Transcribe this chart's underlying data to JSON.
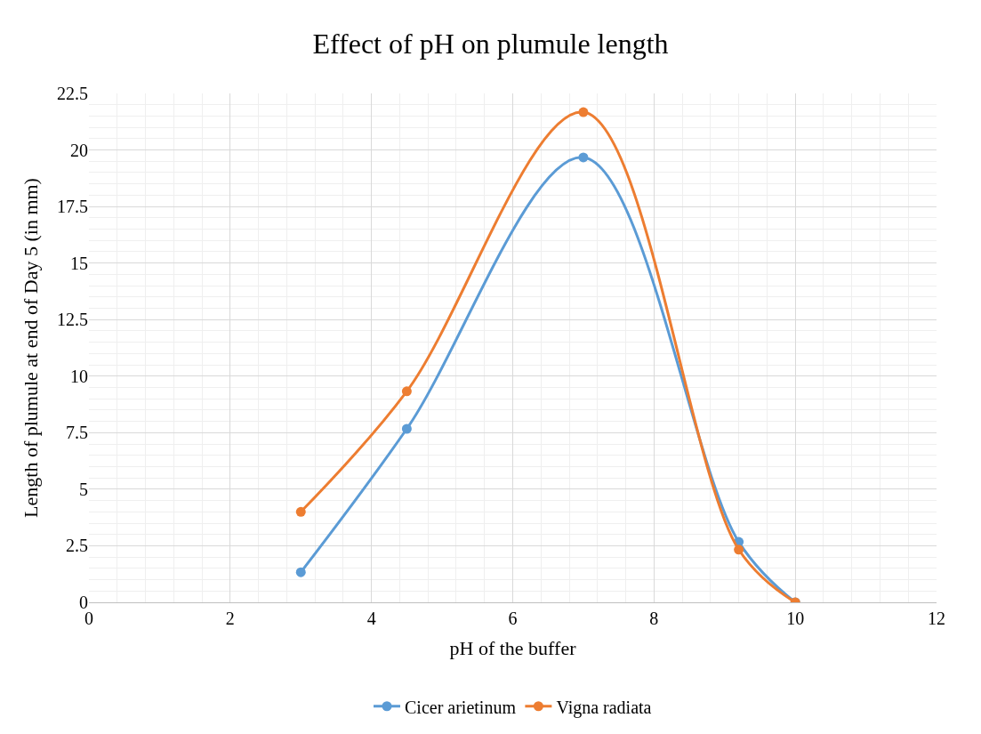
{
  "chart_data": {
    "type": "line",
    "title": "Effect of pH on plumule length",
    "xlabel": "pH of the buffer",
    "ylabel": "Length of plumule at end of Day 5 (in mm)",
    "x": [
      3,
      4.5,
      7,
      9.2,
      10
    ],
    "series": [
      {
        "name": "Cicer arietinum",
        "color": "#5b9bd5",
        "values": [
          1.33,
          7.67,
          19.67,
          2.67,
          0
        ]
      },
      {
        "name": "Vigna radiata",
        "color": "#ed7d31",
        "values": [
          4,
          9.33,
          21.67,
          2.33,
          0
        ]
      }
    ],
    "xlim": [
      0,
      12
    ],
    "xticks": [
      0,
      2,
      4,
      6,
      8,
      10,
      12
    ],
    "ylim": [
      0,
      22.5
    ],
    "yticks": [
      0,
      2.5,
      5,
      7.5,
      10,
      12.5,
      15,
      17.5,
      20,
      22.5
    ],
    "grid": true,
    "legend": "bottom",
    "marker": "circle",
    "line_style": "solid"
  }
}
